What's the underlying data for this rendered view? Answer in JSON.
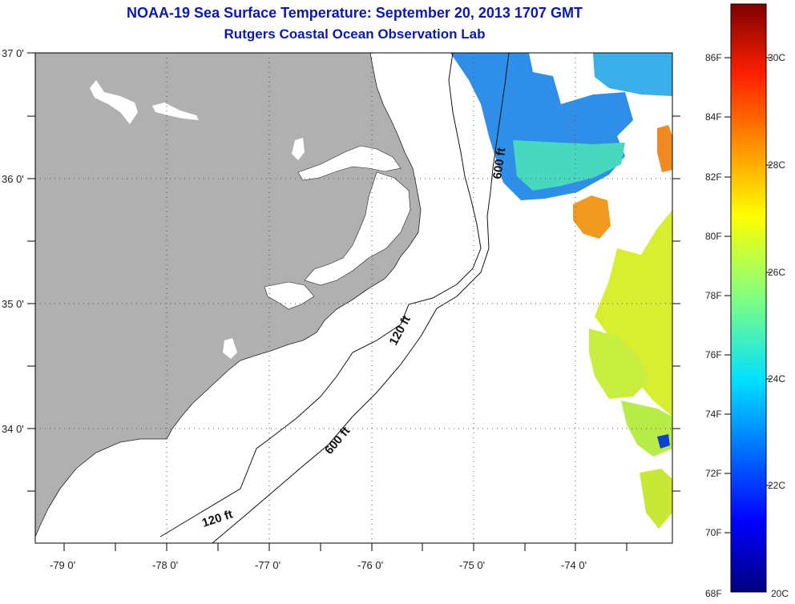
{
  "title": "NOAA-19 Sea Surface Temperature:  September 20, 2013 1707 GMT",
  "subtitle": "Rutgers Coastal Ocean Observation Lab",
  "lat_ticks": [
    "37 0'",
    "36 0'",
    "35 0'",
    "34 0'"
  ],
  "lon_ticks": [
    "-79 0'",
    "-78 0'",
    "-77 0'",
    "-76 0'",
    "-75 0'",
    "-74 0'"
  ],
  "contours": {
    "c120a": "120 ft",
    "c600a": "600 ft",
    "c120b": "120 ft",
    "c600b": "600 ft"
  },
  "colorbar": {
    "fahrenheit": [
      "86F",
      "84F",
      "82F",
      "80F",
      "78F",
      "76F",
      "74F",
      "72F",
      "70F",
      "68F"
    ],
    "celsius": [
      "30C",
      "28C",
      "26C",
      "24C",
      "22C",
      "20C"
    ]
  },
  "colors": {
    "land": "#b0b0b0",
    "title": "#0b1aa8"
  }
}
